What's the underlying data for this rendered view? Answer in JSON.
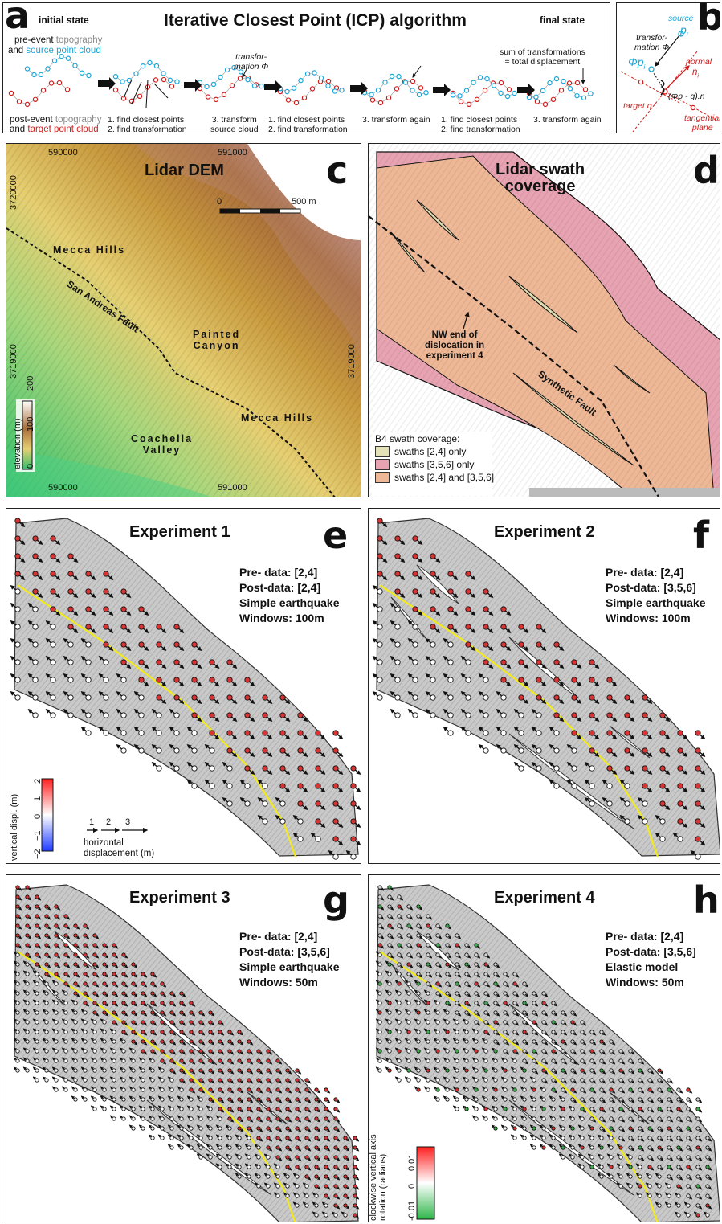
{
  "panel_a": {
    "letter": "a",
    "title": "Iterative Closest Point (ICP) algorithm",
    "initial_state": "initial state",
    "final_state": "final state",
    "pre_event_1": "pre-event",
    "pre_event_2": "topography",
    "and_source_1": "and",
    "and_source_2": "source point cloud",
    "post_event_1": "post-event",
    "post_event_2": "topography",
    "and_target_1": "and",
    "and_target_2": "target point cloud",
    "transformation_label_1": "transfor-",
    "transformation_label_2": "mation Φ",
    "sum_label_1": "sum of transformations",
    "sum_label_2": "= total displacement",
    "step_1a": "1. find closest points",
    "step_1b": "2. find transformation",
    "step_2a": "3. transform",
    "step_2b": "source cloud",
    "step_3a": "1. find closest points",
    "step_3b": "2. find transformation",
    "step_4": "3. transform again",
    "step_5a": "1. find closest points",
    "step_5b": "2. find transformation",
    "step_6": "3. transform again"
  },
  "panel_b": {
    "letter": "b",
    "source": "source",
    "p_i": "p",
    "transformation_1": "transfor-",
    "transformation_2": "mation Φ",
    "phi_p": "Φp",
    "normal": "normal",
    "n_i": "n",
    "formula": "(Φp - q).n",
    "target": "target q",
    "tangential_1": "tangential",
    "tangential_2": "plane"
  },
  "panel_c": {
    "letter": "c",
    "title": "Lidar DEM",
    "scale_0": "0",
    "scale_500": "500 m",
    "x_top_1": "590000",
    "x_top_2": "591000",
    "x_bot_1": "590000",
    "x_bot_2": "591000",
    "y_1": "3720000",
    "y_2": "3719000",
    "y_3": "3719000",
    "mecca_hills_1": "Mecca    Hills",
    "mecca_hills_2": "Mecca    Hills",
    "painted_1": "Painted",
    "painted_2": "Canyon",
    "coachella_1": "Coachella",
    "coachella_2": "Valley",
    "san_andreas": "San Andreas Fault",
    "elev_label": "elevation (m)",
    "elev_ticks": [
      "200",
      "100",
      "0"
    ]
  },
  "panel_d": {
    "letter": "d",
    "title_1": "Lidar swath",
    "title_2": "coverage",
    "annot_1": "NW end of",
    "annot_2": "dislocation in",
    "annot_3": "experiment 4",
    "synthetic": "Synthetic Fault",
    "legend_title": "B4 swath coverage:",
    "legend": [
      {
        "label": "swaths [2,4] only",
        "color": "#e3e2b6"
      },
      {
        "label": "swaths [3,5,6] only",
        "color": "#e7a3b2"
      },
      {
        "label": "swaths [2,4] and [3,5,6]",
        "color": "#eeb896"
      }
    ]
  },
  "panel_e": {
    "letter": "e",
    "title": "Experiment 1",
    "pre": "Pre- data: [2,4]",
    "post": "Post-data: [2,4]",
    "model": "Simple earthquake",
    "windows": "Windows: 100m",
    "vd_label": "vertical displ. (m)",
    "vd_ticks": [
      "2",
      "1",
      "0",
      "−1",
      "−2"
    ],
    "hd_ticks": [
      "1",
      "2",
      "3"
    ],
    "hd_label_1": "horizontal",
    "hd_label_2": "displacement (m)"
  },
  "panel_f": {
    "letter": "f",
    "title": "Experiment 2",
    "pre": "Pre- data: [2,4]",
    "post": "Post-data: [3,5,6]",
    "model": "Simple earthquake",
    "windows": "Windows: 100m"
  },
  "panel_g": {
    "letter": "g",
    "title": "Experiment 3",
    "pre": "Pre- data: [2,4]",
    "post": "Post-data: [3,5,6]",
    "model": "Simple earthquake",
    "windows": "Windows: 50m"
  },
  "panel_h": {
    "letter": "h",
    "title": "Experiment 4",
    "pre": "Pre- data: [2,4]",
    "post": "Post-data: [3,5,6]",
    "model": "Elastic model",
    "windows": "Windows: 50m",
    "rot_label_1": "clockwise vertical axis",
    "rot_label_2": "rotation (radians)",
    "rot_ticks": [
      "0.01",
      "0",
      "-0.01"
    ]
  },
  "colors": {
    "source": "#1aa7d9",
    "target": "#d11c1c",
    "fault": "#f2ea1a",
    "swath_24": "#e3e2b6",
    "swath_356": "#e7a3b2",
    "swath_both": "#eeb896"
  }
}
